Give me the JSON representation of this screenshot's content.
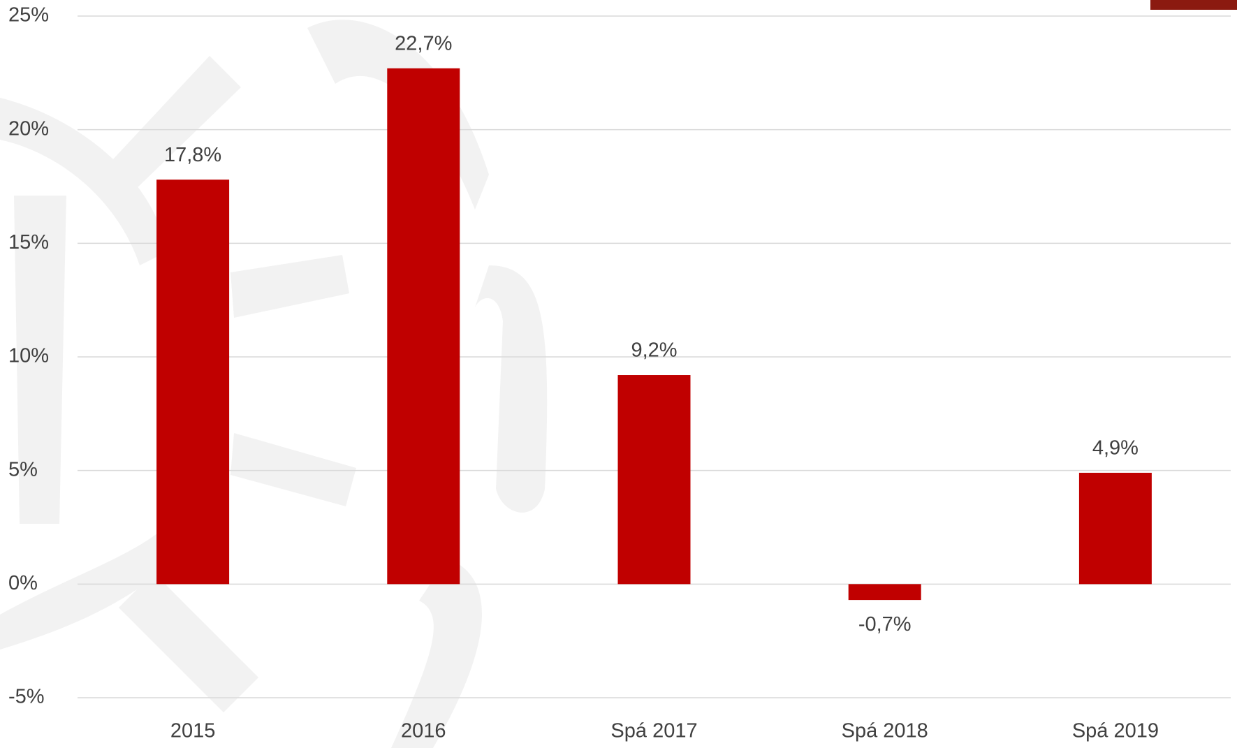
{
  "chart_data": {
    "type": "bar",
    "categories": [
      "2015",
      "2016",
      "Spá 2017",
      "Spá 2018",
      "Spá 2019"
    ],
    "values": [
      17.8,
      22.7,
      9.2,
      -0.7,
      4.9
    ],
    "value_labels": [
      "17,8%",
      "22,7%",
      "9,2%",
      "-0,7%",
      "4,9%"
    ],
    "color": "#c00000",
    "ylim": [
      -5,
      25
    ],
    "yticks": [
      {
        "value": -5,
        "label": "-5%"
      },
      {
        "value": 0,
        "label": "0%"
      },
      {
        "value": 5,
        "label": "5%"
      },
      {
        "value": 10,
        "label": "10%"
      },
      {
        "value": 15,
        "label": "15%"
      },
      {
        "value": 20,
        "label": "20%"
      },
      {
        "value": 25,
        "label": "25%"
      }
    ],
    "grid": true
  }
}
